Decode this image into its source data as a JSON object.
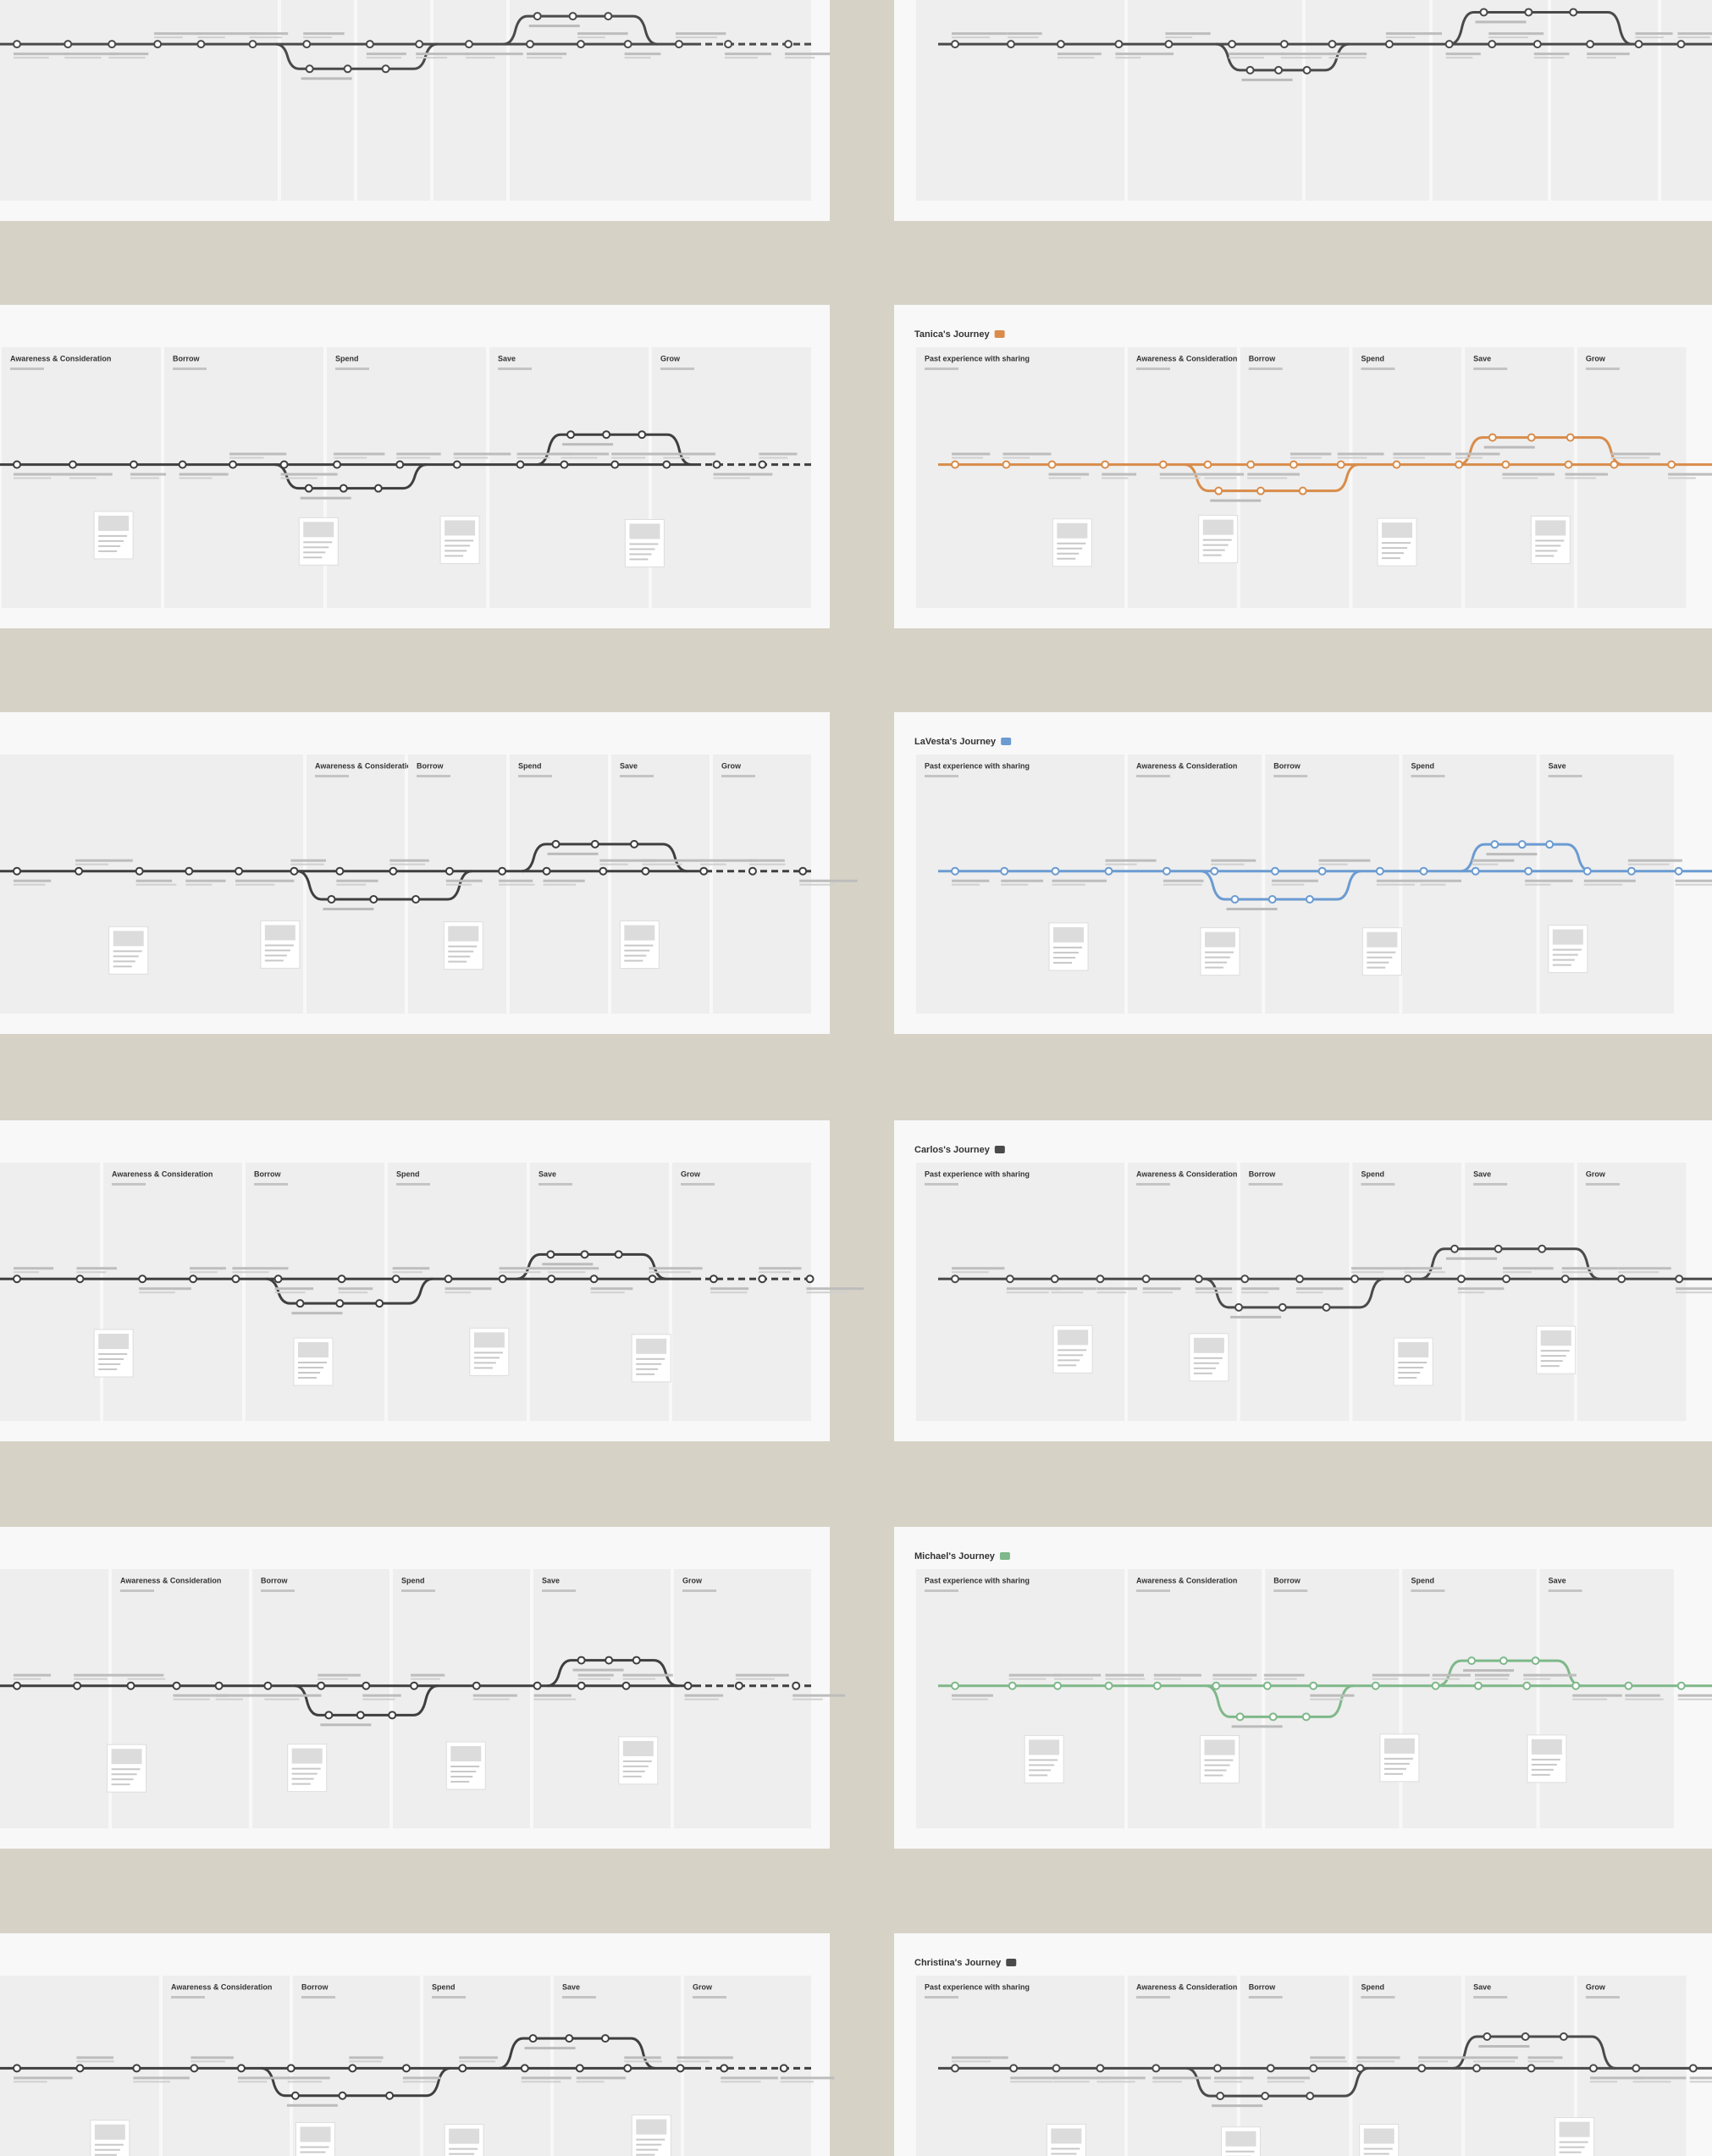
{
  "panels": [
    {
      "side": "left",
      "stages": [],
      "color": "#4a4a4a"
    },
    {
      "side": "right",
      "stages": [],
      "color": "#4a4a4a"
    },
    {
      "side": "left",
      "stages": [
        "Awareness & Consideration",
        "Borrow",
        "Spend",
        "Save",
        "Grow"
      ],
      "color": "#3f3f3f"
    },
    {
      "side": "right",
      "title": "Tanica's Journey",
      "stages": [
        "Past experience with sharing",
        "Awareness & Consideration",
        "Borrow",
        "Spend",
        "Save",
        "Grow"
      ],
      "color": "#d98c4a"
    },
    {
      "side": "left",
      "stages": [
        "Awareness & Consideration",
        "Borrow",
        "Spend",
        "Save",
        "Grow"
      ],
      "color": "#3f3f3f"
    },
    {
      "side": "right",
      "title": "LaVesta's Journey",
      "stages": [
        "Past experience with sharing",
        "Awareness & Consideration",
        "Borrow",
        "Spend",
        "Save"
      ],
      "color": "#6b9bd1"
    },
    {
      "side": "left",
      "stages": [
        "Awareness & Consideration",
        "Borrow",
        "Spend",
        "Save",
        "Grow"
      ],
      "color": "#3f3f3f"
    },
    {
      "side": "right",
      "title": "Carlos's Journey",
      "stages": [
        "Past experience with sharing",
        "Awareness & Consideration",
        "Borrow",
        "Spend",
        "Save",
        "Grow"
      ],
      "color": "#4a4a4a"
    },
    {
      "side": "left",
      "stages": [
        "Awareness & Consideration",
        "Borrow",
        "Spend",
        "Save",
        "Grow"
      ],
      "color": "#3f3f3f"
    },
    {
      "side": "right",
      "title": "Michael's Journey",
      "stages": [
        "Past experience with sharing",
        "Awareness & Consideration",
        "Borrow",
        "Spend",
        "Save"
      ],
      "color": "#7fb88a"
    },
    {
      "side": "left",
      "stages": [
        "Awareness & Consideration",
        "Borrow",
        "Spend",
        "Save",
        "Grow"
      ],
      "color": "#3f3f3f"
    },
    {
      "side": "right",
      "title": "Christina's Journey",
      "stages": [
        "Past experience with sharing",
        "Awareness & Consideration",
        "Borrow",
        "Spend",
        "Save",
        "Grow"
      ],
      "color": "#4a4a4a"
    }
  ]
}
